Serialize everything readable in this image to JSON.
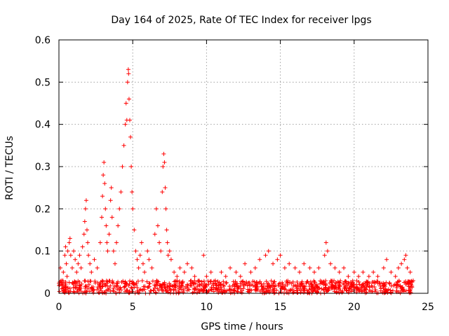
{
  "chart_data": {
    "type": "scatter",
    "title": "Day 164 of 2025, Rate Of TEC Index for receiver lpgs",
    "xlabel": "GPS time / hours",
    "ylabel": "ROTI / TECUs",
    "xlim": [
      0,
      25
    ],
    "ylim": [
      0,
      0.6
    ],
    "xticks": [
      0,
      5,
      10,
      15,
      20,
      25
    ],
    "xtick_labels": [
      "0",
      "5",
      "10",
      "15",
      "20",
      "25"
    ],
    "yticks": [
      0,
      0.1,
      0.2,
      0.3,
      0.4,
      0.5,
      0.6
    ],
    "ytick_labels": [
      "0",
      "0.1",
      "0.2",
      "0.3",
      "0.4",
      "0.5",
      "0.6"
    ],
    "grid": true,
    "marker": "+",
    "color": "#ff0000",
    "series": [
      {
        "name": "ROTI",
        "points": [
          [
            0.05,
            0.02
          ],
          [
            0.1,
            0.06
          ],
          [
            0.2,
            0.03
          ],
          [
            0.3,
            0.05
          ],
          [
            0.4,
            0.09
          ],
          [
            0.45,
            0.11
          ],
          [
            0.5,
            0.07
          ],
          [
            0.55,
            0.04
          ],
          [
            0.6,
            0.1
          ],
          [
            0.7,
            0.12
          ],
          [
            0.75,
            0.13
          ],
          [
            0.8,
            0.09
          ],
          [
            0.9,
            0.06
          ],
          [
            1.0,
            0.1
          ],
          [
            1.1,
            0.08
          ],
          [
            1.2,
            0.05
          ],
          [
            1.3,
            0.07
          ],
          [
            1.4,
            0.09
          ],
          [
            1.5,
            0.06
          ],
          [
            1.6,
            0.11
          ],
          [
            1.7,
            0.14
          ],
          [
            1.75,
            0.17
          ],
          [
            1.8,
            0.2
          ],
          [
            1.85,
            0.22
          ],
          [
            1.9,
            0.15
          ],
          [
            1.95,
            0.12
          ],
          [
            2.0,
            0.09
          ],
          [
            2.1,
            0.07
          ],
          [
            2.2,
            0.05
          ],
          [
            2.4,
            0.08
          ],
          [
            2.6,
            0.06
          ],
          [
            2.8,
            0.12
          ],
          [
            2.9,
            0.18
          ],
          [
            2.95,
            0.23
          ],
          [
            3.0,
            0.28
          ],
          [
            3.05,
            0.31
          ],
          [
            3.1,
            0.26
          ],
          [
            3.15,
            0.2
          ],
          [
            3.2,
            0.16
          ],
          [
            3.25,
            0.12
          ],
          [
            3.3,
            0.1
          ],
          [
            3.4,
            0.14
          ],
          [
            3.5,
            0.22
          ],
          [
            3.55,
            0.25
          ],
          [
            3.6,
            0.18
          ],
          [
            3.7,
            0.1
          ],
          [
            3.8,
            0.07
          ],
          [
            3.9,
            0.12
          ],
          [
            4.0,
            0.16
          ],
          [
            4.1,
            0.2
          ],
          [
            4.2,
            0.24
          ],
          [
            4.3,
            0.3
          ],
          [
            4.4,
            0.35
          ],
          [
            4.5,
            0.4
          ],
          [
            4.55,
            0.45
          ],
          [
            4.6,
            0.41
          ],
          [
            4.65,
            0.5
          ],
          [
            4.7,
            0.53
          ],
          [
            4.72,
            0.52
          ],
          [
            4.75,
            0.46
          ],
          [
            4.8,
            0.41
          ],
          [
            4.85,
            0.37
          ],
          [
            4.9,
            0.3
          ],
          [
            4.95,
            0.24
          ],
          [
            5.0,
            0.2
          ],
          [
            5.1,
            0.15
          ],
          [
            5.2,
            0.1
          ],
          [
            5.3,
            0.08
          ],
          [
            5.4,
            0.06
          ],
          [
            5.5,
            0.09
          ],
          [
            5.6,
            0.12
          ],
          [
            5.7,
            0.07
          ],
          [
            5.8,
            0.05
          ],
          [
            6.0,
            0.1
          ],
          [
            6.1,
            0.08
          ],
          [
            6.3,
            0.06
          ],
          [
            6.5,
            0.14
          ],
          [
            6.6,
            0.2
          ],
          [
            6.7,
            0.16
          ],
          [
            6.8,
            0.12
          ],
          [
            6.9,
            0.1
          ],
          [
            7.0,
            0.24
          ],
          [
            7.05,
            0.3
          ],
          [
            7.1,
            0.33
          ],
          [
            7.15,
            0.31
          ],
          [
            7.2,
            0.25
          ],
          [
            7.25,
            0.2
          ],
          [
            7.3,
            0.15
          ],
          [
            7.35,
            0.12
          ],
          [
            7.4,
            0.09
          ],
          [
            7.5,
            0.1
          ],
          [
            7.6,
            0.08
          ],
          [
            7.8,
            0.05
          ],
          [
            8.0,
            0.04
          ],
          [
            8.2,
            0.06
          ],
          [
            8.5,
            0.05
          ],
          [
            8.7,
            0.07
          ],
          [
            9.0,
            0.06
          ],
          [
            9.2,
            0.04
          ],
          [
            9.5,
            0.03
          ],
          [
            9.8,
            0.09
          ],
          [
            10.0,
            0.04
          ],
          [
            10.3,
            0.05
          ],
          [
            10.6,
            0.03
          ],
          [
            11.0,
            0.05
          ],
          [
            11.3,
            0.04
          ],
          [
            11.6,
            0.06
          ],
          [
            12.0,
            0.05
          ],
          [
            12.3,
            0.04
          ],
          [
            12.6,
            0.07
          ],
          [
            13.0,
            0.05
          ],
          [
            13.3,
            0.06
          ],
          [
            13.6,
            0.08
          ],
          [
            14.0,
            0.09
          ],
          [
            14.2,
            0.1
          ],
          [
            14.5,
            0.07
          ],
          [
            14.8,
            0.08
          ],
          [
            15.0,
            0.09
          ],
          [
            15.3,
            0.06
          ],
          [
            15.6,
            0.07
          ],
          [
            16.0,
            0.06
          ],
          [
            16.3,
            0.05
          ],
          [
            16.6,
            0.07
          ],
          [
            17.0,
            0.06
          ],
          [
            17.3,
            0.05
          ],
          [
            17.6,
            0.06
          ],
          [
            18.0,
            0.09
          ],
          [
            18.1,
            0.12
          ],
          [
            18.2,
            0.1
          ],
          [
            18.4,
            0.07
          ],
          [
            18.7,
            0.06
          ],
          [
            19.0,
            0.05
          ],
          [
            19.3,
            0.06
          ],
          [
            19.6,
            0.04
          ],
          [
            20.0,
            0.05
          ],
          [
            20.3,
            0.04
          ],
          [
            20.6,
            0.05
          ],
          [
            21.0,
            0.04
          ],
          [
            21.3,
            0.05
          ],
          [
            21.6,
            0.04
          ],
          [
            22.0,
            0.06
          ],
          [
            22.2,
            0.08
          ],
          [
            22.5,
            0.05
          ],
          [
            22.8,
            0.04
          ],
          [
            23.0,
            0.06
          ],
          [
            23.2,
            0.07
          ],
          [
            23.4,
            0.08
          ],
          [
            23.5,
            0.09
          ],
          [
            23.6,
            0.06
          ],
          [
            23.8,
            0.05
          ],
          [
            24.0,
            0.03
          ]
        ],
        "baseline_band": {
          "x_range": [
            0,
            24
          ],
          "y_range": [
            0,
            0.03
          ],
          "count": 900
        }
      }
    ]
  }
}
